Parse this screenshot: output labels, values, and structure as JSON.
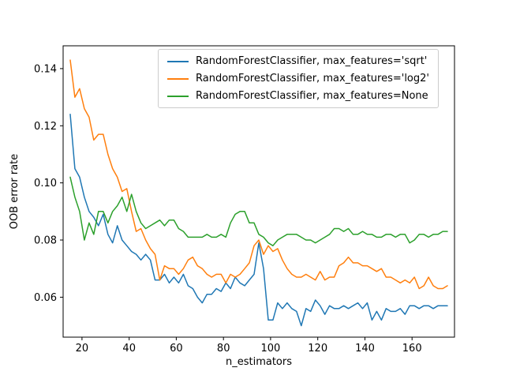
{
  "figure": {
    "background": "#ffffff"
  },
  "chart_data": {
    "type": "line",
    "title": "",
    "xlabel": "n_estimators",
    "ylabel": "OOB error rate",
    "xlim": [
      12,
      178
    ],
    "ylim": [
      0.046,
      0.148
    ],
    "xticks": [
      20,
      40,
      60,
      80,
      100,
      120,
      140,
      160
    ],
    "yticks": [
      0.06,
      0.08,
      0.1,
      0.12,
      0.14
    ],
    "ytick_labels": [
      "0.06",
      "0.08",
      "0.10",
      "0.12",
      "0.14"
    ],
    "grid": false,
    "legend_position": "upper center-right inside axes",
    "x": [
      15,
      17,
      19,
      21,
      23,
      25,
      27,
      29,
      31,
      33,
      35,
      37,
      39,
      41,
      43,
      45,
      47,
      49,
      51,
      53,
      55,
      57,
      59,
      61,
      63,
      65,
      67,
      69,
      71,
      73,
      75,
      77,
      79,
      81,
      83,
      85,
      87,
      89,
      91,
      93,
      95,
      97,
      99,
      101,
      103,
      105,
      107,
      109,
      111,
      113,
      115,
      117,
      119,
      121,
      123,
      125,
      127,
      129,
      131,
      133,
      135,
      137,
      139,
      141,
      143,
      145,
      147,
      149,
      151,
      153,
      155,
      157,
      159,
      161,
      163,
      165,
      167,
      169,
      171,
      173,
      175
    ],
    "series": [
      {
        "name": "RandomForestClassifier, max_features='sqrt'",
        "color": "#1f77b4",
        "values": [
          0.124,
          0.105,
          0.102,
          0.095,
          0.09,
          0.088,
          0.085,
          0.089,
          0.082,
          0.079,
          0.085,
          0.08,
          0.078,
          0.076,
          0.075,
          0.073,
          0.075,
          0.073,
          0.066,
          0.066,
          0.068,
          0.065,
          0.067,
          0.065,
          0.068,
          0.064,
          0.063,
          0.06,
          0.058,
          0.061,
          0.061,
          0.063,
          0.062,
          0.065,
          0.063,
          0.067,
          0.065,
          0.064,
          0.066,
          0.068,
          0.079,
          0.07,
          0.052,
          0.052,
          0.058,
          0.056,
          0.058,
          0.056,
          0.055,
          0.05,
          0.056,
          0.055,
          0.059,
          0.057,
          0.054,
          0.057,
          0.056,
          0.056,
          0.057,
          0.056,
          0.057,
          0.058,
          0.056,
          0.058,
          0.052,
          0.055,
          0.052,
          0.056,
          0.055,
          0.055,
          0.056,
          0.054,
          0.057,
          0.057,
          0.056,
          0.057,
          0.057,
          0.056,
          0.057,
          0.057,
          0.057
        ]
      },
      {
        "name": "RandomForestClassifier, max_features='log2'",
        "color": "#ff7f0e",
        "values": [
          0.143,
          0.13,
          0.133,
          0.126,
          0.123,
          0.115,
          0.117,
          0.117,
          0.11,
          0.105,
          0.102,
          0.097,
          0.098,
          0.09,
          0.083,
          0.084,
          0.08,
          0.077,
          0.075,
          0.066,
          0.071,
          0.07,
          0.07,
          0.068,
          0.07,
          0.073,
          0.074,
          0.071,
          0.07,
          0.068,
          0.067,
          0.068,
          0.068,
          0.065,
          0.068,
          0.067,
          0.068,
          0.07,
          0.072,
          0.078,
          0.08,
          0.075,
          0.078,
          0.076,
          0.077,
          0.073,
          0.07,
          0.068,
          0.067,
          0.067,
          0.068,
          0.067,
          0.066,
          0.069,
          0.066,
          0.067,
          0.067,
          0.071,
          0.072,
          0.074,
          0.072,
          0.072,
          0.071,
          0.071,
          0.07,
          0.069,
          0.07,
          0.067,
          0.067,
          0.066,
          0.065,
          0.066,
          0.065,
          0.067,
          0.063,
          0.064,
          0.067,
          0.064,
          0.063,
          0.063,
          0.064
        ]
      },
      {
        "name": "RandomForestClassifier, max_features=None",
        "color": "#2ca02c",
        "values": [
          0.102,
          0.095,
          0.09,
          0.08,
          0.086,
          0.082,
          0.09,
          0.09,
          0.086,
          0.09,
          0.092,
          0.095,
          0.09,
          0.096,
          0.09,
          0.086,
          0.084,
          0.085,
          0.086,
          0.087,
          0.085,
          0.087,
          0.087,
          0.084,
          0.083,
          0.081,
          0.081,
          0.081,
          0.081,
          0.082,
          0.081,
          0.081,
          0.082,
          0.081,
          0.086,
          0.089,
          0.09,
          0.09,
          0.086,
          0.086,
          0.082,
          0.081,
          0.079,
          0.078,
          0.08,
          0.081,
          0.082,
          0.082,
          0.082,
          0.081,
          0.08,
          0.08,
          0.079,
          0.08,
          0.081,
          0.082,
          0.084,
          0.084,
          0.083,
          0.084,
          0.082,
          0.082,
          0.083,
          0.082,
          0.082,
          0.081,
          0.081,
          0.082,
          0.082,
          0.081,
          0.082,
          0.082,
          0.079,
          0.08,
          0.082,
          0.082,
          0.081,
          0.082,
          0.082,
          0.083,
          0.083
        ]
      }
    ]
  }
}
